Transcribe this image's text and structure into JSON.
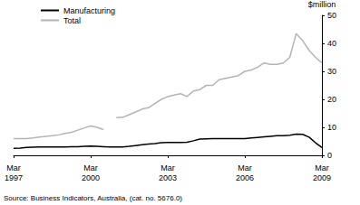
{
  "chart_data": {
    "type": "line",
    "ylabel": "$million",
    "annotations": [
      "Source: Business Indicators, Australia, (cat. no. 5676.0)"
    ],
    "categories": [
      "Mar 1997",
      null,
      null,
      null,
      null,
      null,
      null,
      null,
      null,
      null,
      null,
      null,
      "Mar 2000",
      null,
      null,
      null,
      null,
      null,
      null,
      null,
      null,
      null,
      null,
      null,
      "Mar 2003",
      null,
      null,
      null,
      null,
      null,
      null,
      null,
      null,
      null,
      null,
      null,
      "Mar 2006",
      null,
      null,
      null,
      null,
      null,
      null,
      null,
      null,
      null,
      null,
      null,
      "Mar 2009"
    ],
    "series": [
      {
        "name": "Manufacturing",
        "color": "#000000",
        "values": [
          2.5,
          2.6,
          2.8,
          2.9,
          3,
          3,
          3,
          3,
          3,
          3.1,
          3.1,
          3.2,
          3.3,
          3.2,
          3.1,
          3,
          3,
          3,
          3.2,
          3.5,
          3.8,
          4,
          4.2,
          4.5,
          4.6,
          4.6,
          4.6,
          4.7,
          5.2,
          5.8,
          5.9,
          6,
          6,
          6,
          6,
          6,
          6,
          6.2,
          6.4,
          6.6,
          6.8,
          7,
          7,
          7.2,
          7.6,
          7.5,
          6.5,
          4.5,
          2.8
        ]
      },
      {
        "name": "Total",
        "color": "#b4b4b4",
        "values": [
          6,
          6,
          6,
          6.2,
          6.5,
          6.8,
          7,
          7.3,
          7.8,
          8.2,
          9,
          9.8,
          10.5,
          10,
          9.2,
          null,
          13.5,
          13.6,
          14.5,
          15.5,
          16.5,
          17,
          18.5,
          20,
          21,
          21.5,
          22,
          21,
          23,
          23.5,
          25,
          25,
          27,
          27.5,
          28,
          28.5,
          30,
          30.5,
          31.5,
          33,
          32.5,
          32.5,
          33,
          35,
          43.5,
          41,
          37.5,
          35,
          33
        ]
      }
    ],
    "ylim": [
      0,
      50
    ],
    "yticks": [
      0,
      10,
      20,
      30,
      40,
      50
    ],
    "grid": false,
    "legend": "top-left"
  }
}
